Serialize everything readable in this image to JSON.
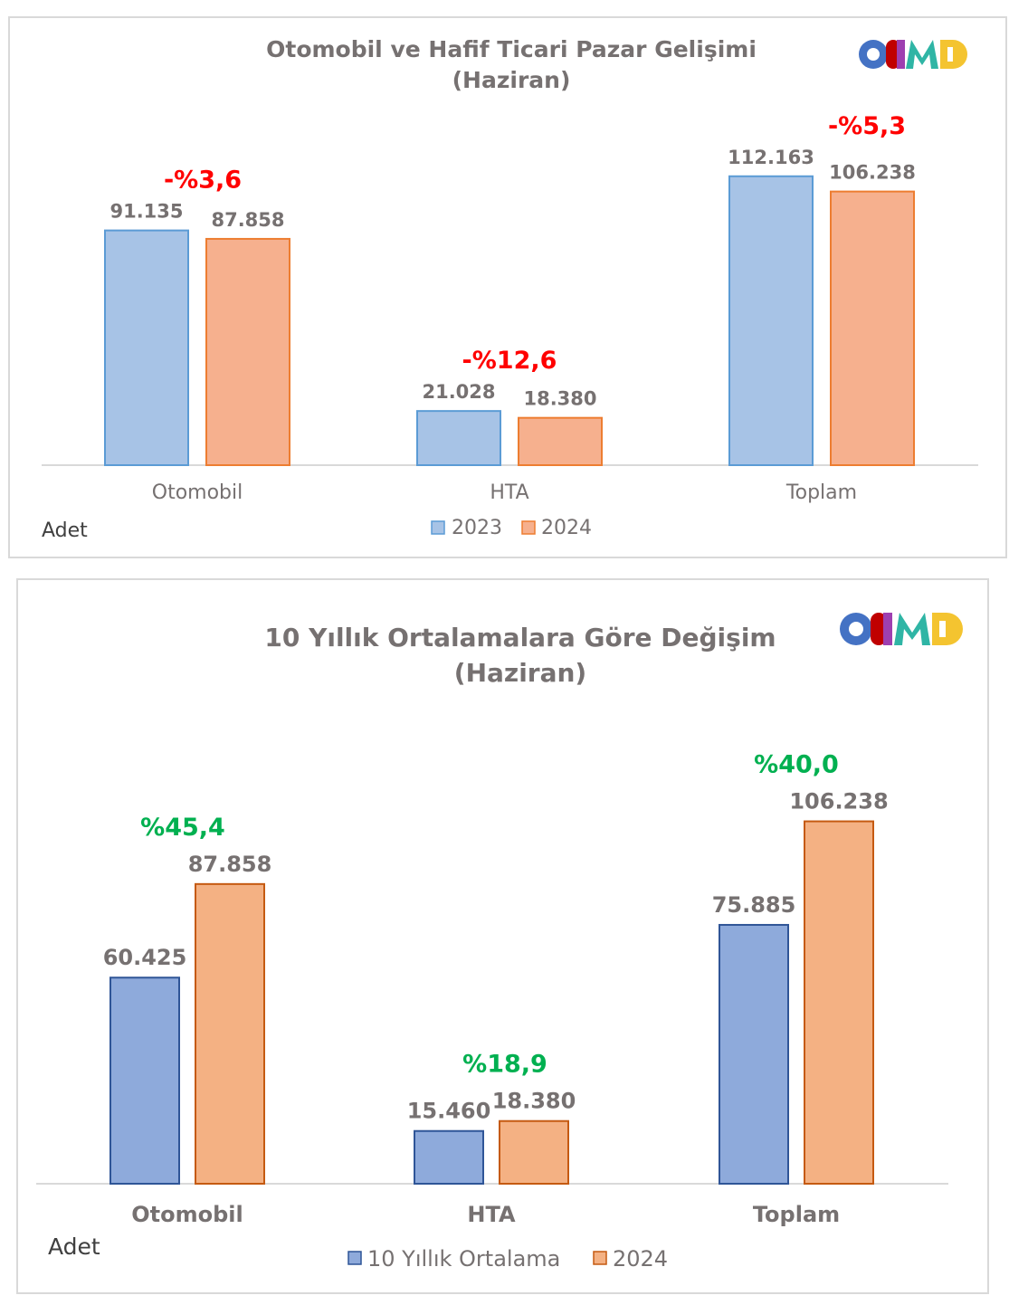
{
  "logo": {
    "text": "ODMD",
    "colors": [
      "#4472c4",
      "#c00000",
      "#9e3fb0",
      "#2fb5a5",
      "#f4c430"
    ]
  },
  "colors": {
    "bar_light_blue": "#a7c3e6",
    "bar_light_orange": "#f6b08e",
    "bar_blue": "#8eaadb",
    "bar_orange": "#f4b183",
    "negative": "#ff0000",
    "positive": "#00b050"
  },
  "chart_data": [
    {
      "type": "bar",
      "title": "Otomobil ve Hafif Ticari Pazar Gelişimi",
      "subtitle": "(Haziran)",
      "unit_label": "Adet",
      "categories": [
        "Otomobil",
        "HTA",
        "Toplam"
      ],
      "series": [
        {
          "name": "2023",
          "values": [
            91135,
            21028,
            112163
          ],
          "labels": [
            "91.135",
            "21.028",
            "112.163"
          ]
        },
        {
          "name": "2024",
          "values": [
            87858,
            18380,
            106238
          ],
          "labels": [
            "87.858",
            "18.380",
            "106.238"
          ]
        }
      ],
      "change_labels": [
        "-%3,6",
        "-%12,6",
        "-%5,3"
      ],
      "ylim": [
        0,
        130000
      ],
      "grid": false,
      "legend": "bottom"
    },
    {
      "type": "bar",
      "title": "10 Yıllık Ortalamalara  Göre Değişim",
      "subtitle": "(Haziran)",
      "unit_label": "Adet",
      "categories": [
        "Otomobil",
        "HTA",
        "Toplam"
      ],
      "series": [
        {
          "name": "10 Yıllık Ortalama",
          "values": [
            60425,
            15460,
            75885
          ],
          "labels": [
            "60.425",
            "15.460",
            "75.885"
          ]
        },
        {
          "name": "2024",
          "values": [
            87858,
            18380,
            106238
          ],
          "labels": [
            "87.858",
            "18.380",
            "106.238"
          ]
        }
      ],
      "change_labels": [
        "%45,4",
        "%18,9",
        "%40,0"
      ],
      "ylim": [
        0,
        130000
      ],
      "grid": false,
      "legend": "bottom"
    }
  ]
}
